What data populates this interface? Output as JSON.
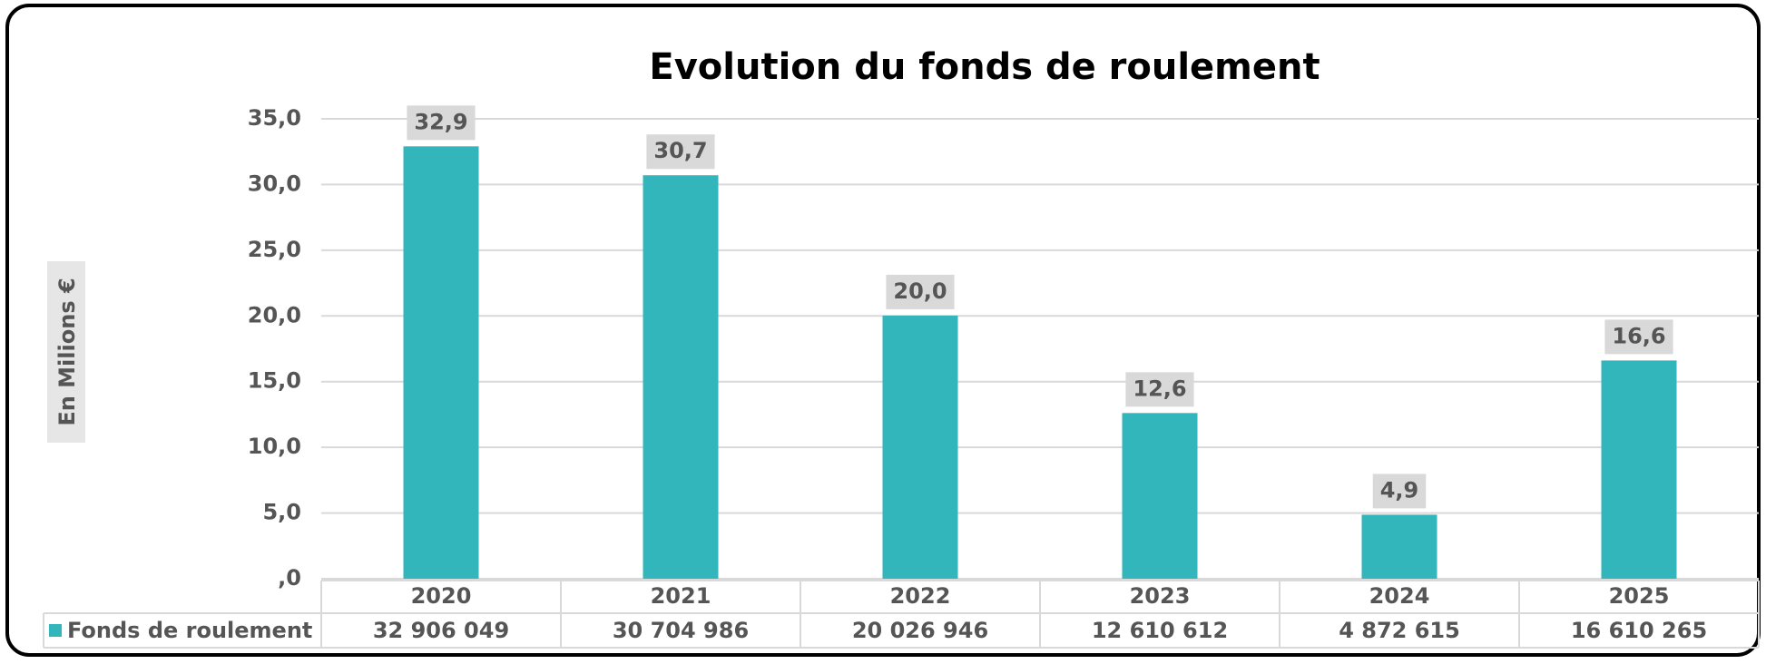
{
  "chart_data": {
    "type": "bar",
    "title": "Evolution du fonds de roulement",
    "ylabel": "En Milions €",
    "categories": [
      "2020",
      "2021",
      "2022",
      "2023",
      "2024",
      "2025"
    ],
    "series": [
      {
        "name": "Fonds de roulement",
        "color": "#32b6bc",
        "values": [
          32.906049,
          30.704986,
          20.026946,
          12.610612,
          4.872615,
          16.610265
        ],
        "value_labels": [
          "32,9",
          "30,7",
          "20,0",
          "12,6",
          "4,9",
          "16,6"
        ],
        "table_labels": [
          "32 906 049",
          "30 704 986",
          "20 026 946",
          "12 610 612",
          "4 872 615",
          "16 610 265"
        ]
      }
    ],
    "ylim": [
      0,
      35
    ],
    "yticks": [
      {
        "value": 0,
        "label": ",0"
      },
      {
        "value": 5,
        "label": "5,0"
      },
      {
        "value": 10,
        "label": "10,0"
      },
      {
        "value": 15,
        "label": "15,0"
      },
      {
        "value": 20,
        "label": "20,0"
      },
      {
        "value": 25,
        "label": "25,0"
      },
      {
        "value": 30,
        "label": "30,0"
      },
      {
        "value": 35,
        "label": "35,0"
      }
    ],
    "grid": true
  }
}
